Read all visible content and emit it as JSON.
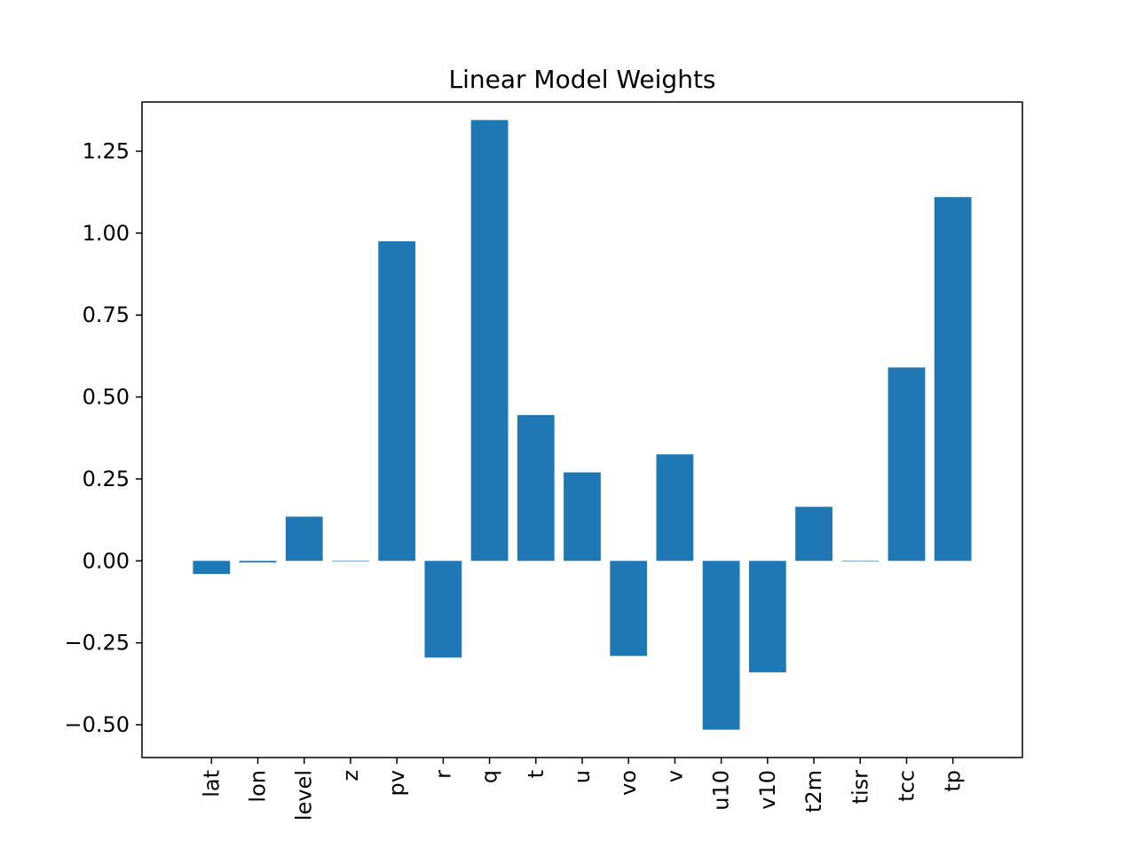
{
  "chart_data": {
    "type": "bar",
    "title": "Linear Model Weights",
    "xlabel": "",
    "ylabel": "",
    "categories": [
      "lat",
      "lon",
      "level",
      "z",
      "pv",
      "r",
      "q",
      "t",
      "u",
      "vo",
      "v",
      "u10",
      "v10",
      "t2m",
      "tisr",
      "tcc",
      "tp"
    ],
    "values": [
      -0.04,
      -0.005,
      0.135,
      0.0,
      0.975,
      -0.295,
      1.345,
      0.445,
      0.27,
      -0.29,
      0.325,
      -0.515,
      -0.34,
      0.165,
      0.0,
      0.59,
      1.11
    ],
    "ylim": [
      -0.6,
      1.4
    ],
    "yticks": [
      -0.5,
      -0.25,
      0.0,
      0.25,
      0.5,
      0.75,
      1.0,
      1.25
    ],
    "ytick_labels": [
      "−0.50",
      "−0.25",
      "0.00",
      "0.25",
      "0.50",
      "0.75",
      "1.00",
      "1.25"
    ],
    "bar_color": "#1f77b4",
    "grid": false,
    "legend": "none"
  }
}
